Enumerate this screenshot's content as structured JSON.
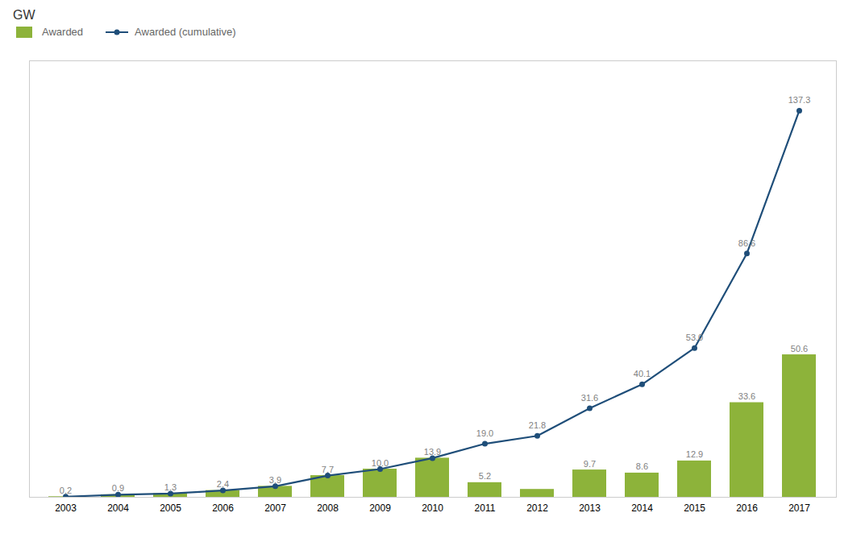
{
  "chart_data": {
    "type": "bar",
    "ylabel": "GW",
    "categories": [
      "2003",
      "2004",
      "2005",
      "2006",
      "2007",
      "2008",
      "2009",
      "2010",
      "2011",
      "2012",
      "2013",
      "2014",
      "2015",
      "2016",
      "2017"
    ],
    "series": [
      {
        "name": "Awarded",
        "type": "bar",
        "color": "#8db33a",
        "values": [
          0.2,
          0.9,
          1.3,
          2.4,
          3.9,
          7.7,
          10.0,
          13.9,
          5.2,
          2.8,
          9.7,
          8.6,
          12.9,
          33.6,
          50.6
        ],
        "value_labels": [
          "0.2",
          "0.9",
          "1.3",
          "2.4",
          "3.9",
          "7.7",
          "10.0",
          "13.9",
          "5.2",
          null,
          "9.7",
          "8.6",
          "12.9",
          "33.6",
          "50.6"
        ]
      },
      {
        "name": "Awarded (cumulative)",
        "type": "line",
        "color": "#1f4e79",
        "marker": "circle",
        "values": [
          0.2,
          0.9,
          1.3,
          2.4,
          3.9,
          7.7,
          10.0,
          13.9,
          19.0,
          21.8,
          31.6,
          40.1,
          53.0,
          86.6,
          137.3
        ],
        "value_labels": [
          null,
          null,
          null,
          null,
          null,
          null,
          null,
          null,
          "19.0",
          "21.8",
          "31.6",
          "40.1",
          "53.0",
          "86.6",
          "137.3"
        ]
      }
    ],
    "ylim": [
      0,
      155
    ],
    "tick_labels": "x",
    "data_labels": true,
    "legend": "upper left",
    "grid": false
  }
}
